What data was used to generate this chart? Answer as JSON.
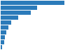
{
  "values": [
    100,
    57,
    47,
    28,
    17,
    12,
    9,
    7,
    5.5,
    3
  ],
  "bar_color": "#2b7bba",
  "background_color": "#ffffff",
  "grid_color": "#d0d0d0",
  "xlim": [
    0,
    108
  ],
  "bar_height": 0.82,
  "num_bars": 10
}
